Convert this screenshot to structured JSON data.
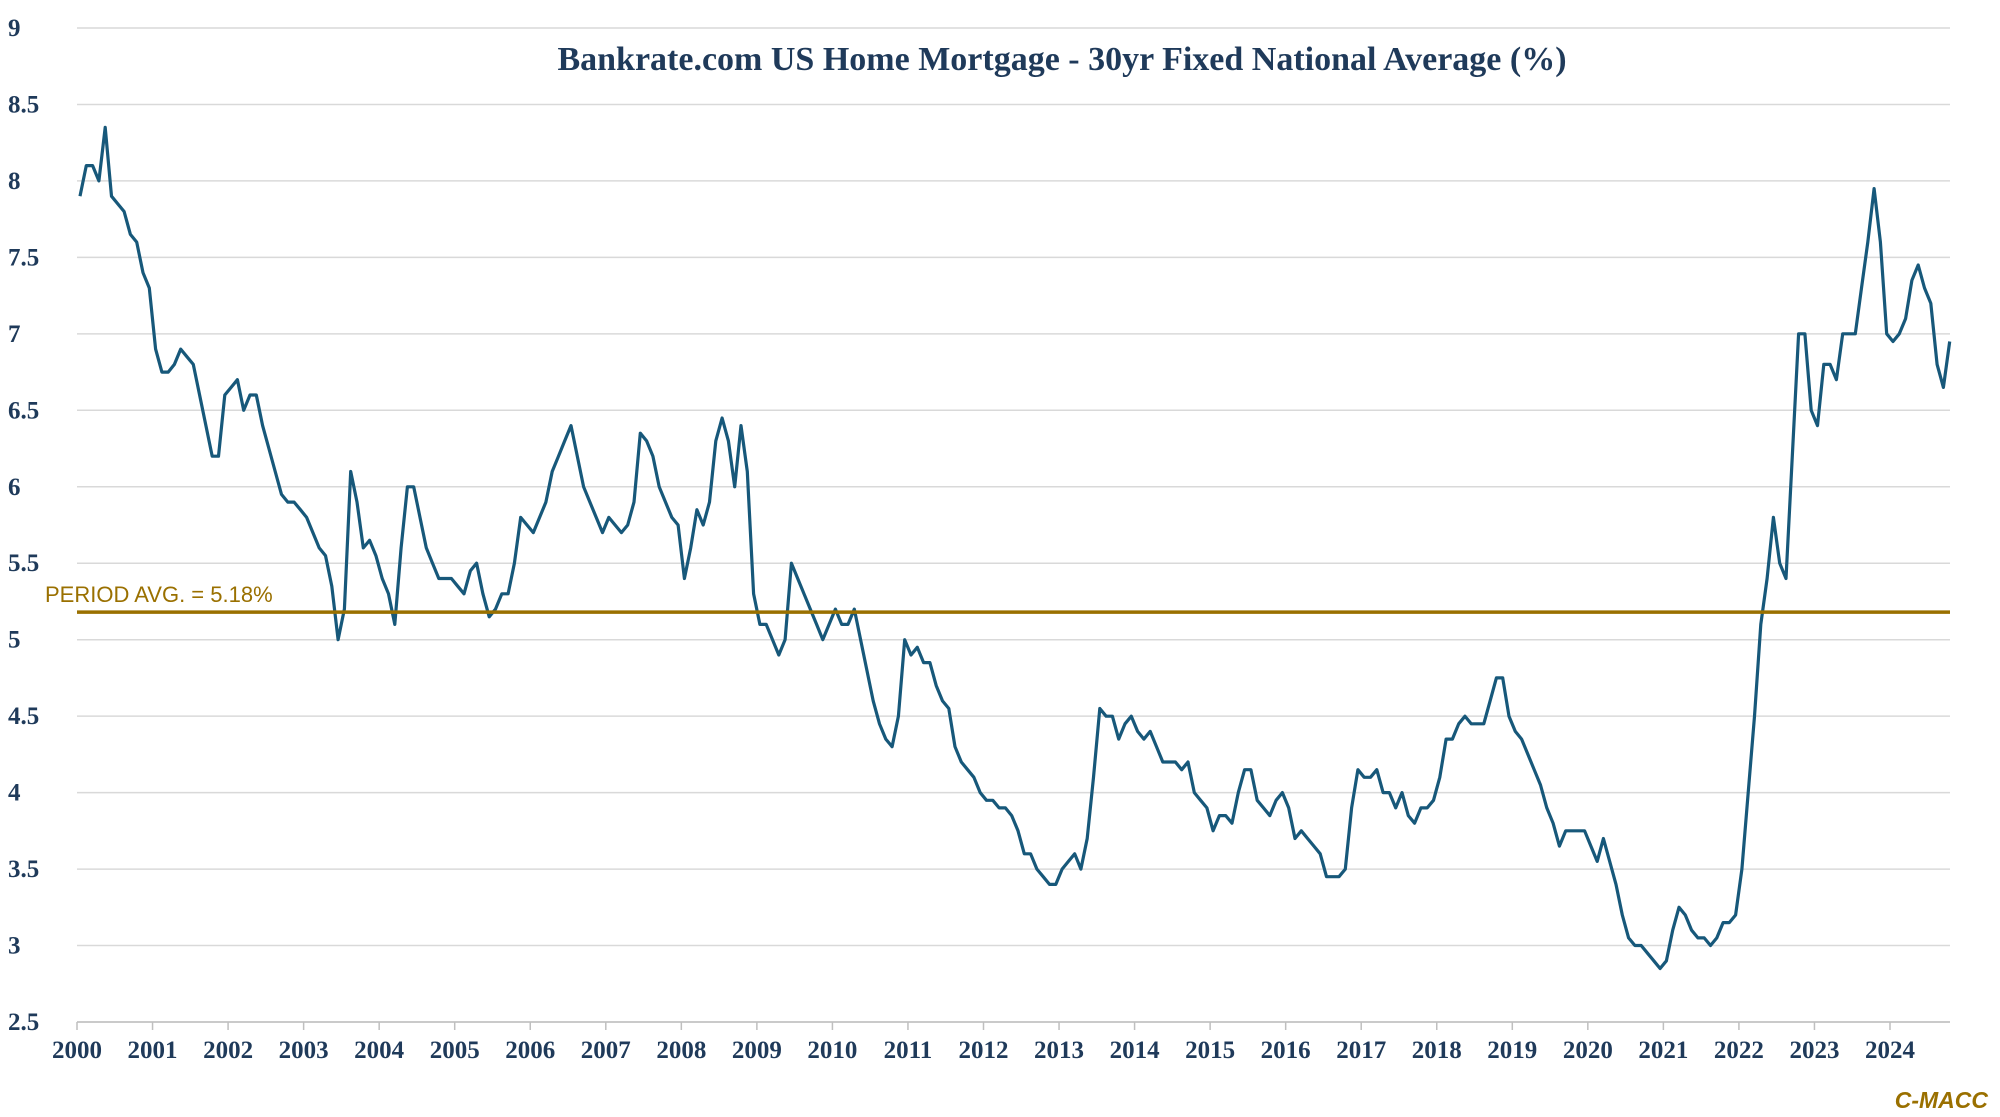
{
  "chart_data": {
    "type": "line",
    "title": "Bankrate.com US Home Mortgage - 30yr Fixed National Average (%)",
    "xlabel": "",
    "ylabel": "",
    "ylim": [
      2.5,
      9
    ],
    "xlim": [
      2000,
      2024.8
    ],
    "yticks": [
      "2.5",
      "3",
      "3.5",
      "4",
      "4.5",
      "5",
      "5.5",
      "6",
      "6.5",
      "7",
      "7.5",
      "8",
      "8.5",
      "9"
    ],
    "xticks": [
      "2000",
      "2001",
      "2002",
      "2003",
      "2004",
      "2005",
      "2006",
      "2007",
      "2008",
      "2009",
      "2010",
      "2011",
      "2012",
      "2013",
      "2014",
      "2015",
      "2016",
      "2017",
      "2018",
      "2019",
      "2020",
      "2021",
      "2022",
      "2023",
      "2024"
    ],
    "grid": "horizontal",
    "start_year": 2000,
    "frequency": "monthly (approx.)",
    "series": [
      {
        "name": "30yr Fixed National Average",
        "color": "#17587a",
        "values": [
          7.9,
          8.1,
          8.1,
          8.0,
          8.35,
          7.9,
          7.85,
          7.8,
          7.65,
          7.6,
          7.4,
          7.3,
          6.9,
          6.75,
          6.75,
          6.8,
          6.9,
          6.85,
          6.8,
          6.6,
          6.4,
          6.2,
          6.2,
          6.6,
          6.65,
          6.7,
          6.5,
          6.6,
          6.6,
          6.4,
          6.25,
          6.1,
          5.95,
          5.9,
          5.9,
          5.85,
          5.8,
          5.7,
          5.6,
          5.55,
          5.35,
          5.0,
          5.2,
          6.1,
          5.9,
          5.6,
          5.65,
          5.55,
          5.4,
          5.3,
          5.1,
          5.6,
          6.0,
          6.0,
          5.8,
          5.6,
          5.5,
          5.4,
          5.4,
          5.4,
          5.35,
          5.3,
          5.45,
          5.5,
          5.3,
          5.15,
          5.2,
          5.3,
          5.3,
          5.5,
          5.8,
          5.75,
          5.7,
          5.8,
          5.9,
          6.1,
          6.2,
          6.3,
          6.4,
          6.2,
          6.0,
          5.9,
          5.8,
          5.7,
          5.8,
          5.75,
          5.7,
          5.75,
          5.9,
          6.35,
          6.3,
          6.2,
          6.0,
          5.9,
          5.8,
          5.75,
          5.4,
          5.6,
          5.85,
          5.75,
          5.9,
          6.3,
          6.45,
          6.3,
          6.0,
          6.4,
          6.1,
          5.3,
          5.1,
          5.1,
          5.0,
          4.9,
          5.0,
          5.5,
          5.4,
          5.3,
          5.2,
          5.1,
          5.0,
          5.1,
          5.2,
          5.1,
          5.1,
          5.2,
          5.0,
          4.8,
          4.6,
          4.45,
          4.35,
          4.3,
          4.5,
          5.0,
          4.9,
          4.95,
          4.85,
          4.85,
          4.7,
          4.6,
          4.55,
          4.3,
          4.2,
          4.15,
          4.1,
          4.0,
          3.95,
          3.95,
          3.9,
          3.9,
          3.85,
          3.75,
          3.6,
          3.6,
          3.5,
          3.45,
          3.4,
          3.4,
          3.5,
          3.55,
          3.6,
          3.5,
          3.7,
          4.1,
          4.55,
          4.5,
          4.5,
          4.35,
          4.45,
          4.5,
          4.4,
          4.35,
          4.4,
          4.3,
          4.2,
          4.2,
          4.2,
          4.15,
          4.2,
          4.0,
          3.95,
          3.9,
          3.75,
          3.85,
          3.85,
          3.8,
          4.0,
          4.15,
          4.15,
          3.95,
          3.9,
          3.85,
          3.95,
          4.0,
          3.9,
          3.7,
          3.75,
          3.7,
          3.65,
          3.6,
          3.45,
          3.45,
          3.45,
          3.5,
          3.9,
          4.15,
          4.1,
          4.1,
          4.15,
          4.0,
          4.0,
          3.9,
          4.0,
          3.85,
          3.8,
          3.9,
          3.9,
          3.95,
          4.1,
          4.35,
          4.35,
          4.45,
          4.5,
          4.45,
          4.45,
          4.45,
          4.6,
          4.75,
          4.75,
          4.5,
          4.4,
          4.35,
          4.25,
          4.15,
          4.05,
          3.9,
          3.8,
          3.65,
          3.75,
          3.75,
          3.75,
          3.75,
          3.65,
          3.55,
          3.7,
          3.55,
          3.4,
          3.2,
          3.05,
          3.0,
          3.0,
          2.95,
          2.9,
          2.85,
          2.9,
          3.1,
          3.25,
          3.2,
          3.1,
          3.05,
          3.05,
          3.0,
          3.05,
          3.15,
          3.15,
          3.2,
          3.5,
          4.0,
          4.5,
          5.1,
          5.4,
          5.8,
          5.5,
          5.4,
          6.2,
          7.0,
          7.0,
          6.5,
          6.4,
          6.8,
          6.8,
          6.7,
          7.0,
          7.0,
          7.0,
          7.3,
          7.6,
          7.95,
          7.6,
          7.0,
          6.95,
          7.0,
          7.1,
          7.35,
          7.45,
          7.3,
          7.2,
          6.8,
          6.65,
          6.95
        ]
      }
    ],
    "reference_line": {
      "label": "PERIOD  AVG. = 5.18%",
      "value": 5.18,
      "color": "#9a7000"
    },
    "annotations": [
      "C-MACC"
    ]
  }
}
